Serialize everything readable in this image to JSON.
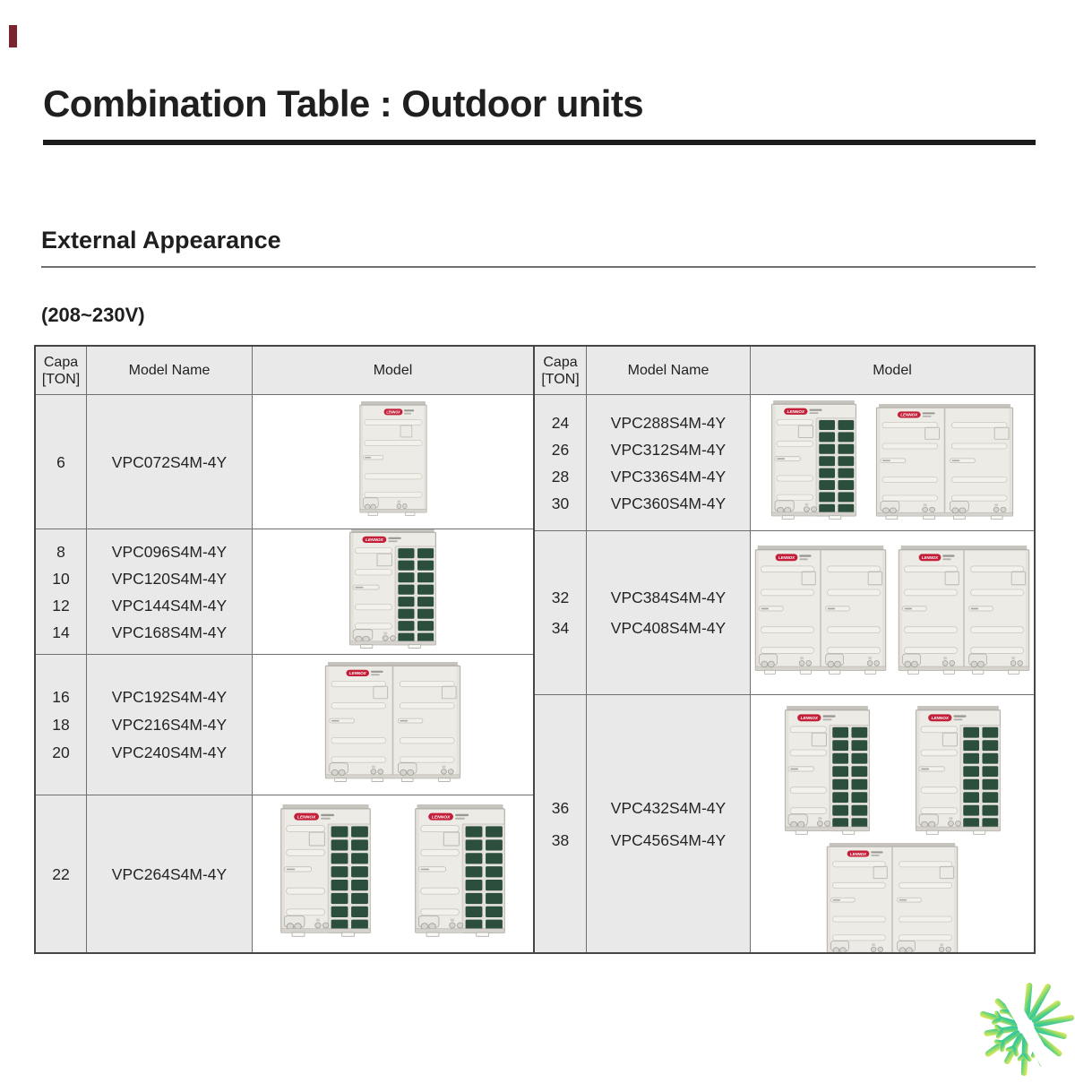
{
  "page": {
    "title": "Combination Table : Outdoor units",
    "section_heading": "External Appearance",
    "voltage_note": "(208~230V)"
  },
  "brand": {
    "unit_logo_text": "LENNOX",
    "unit_logo_color": "#c31f39"
  },
  "colors": {
    "header_bg": "#e9e9ea",
    "outer_border": "#454545",
    "inner_border": "#6e6e6e",
    "grid_panel_green": "#2c4e3c",
    "title_rule": "#1c1c1c",
    "corner_tick": "#7b2430",
    "snowflake_teal": "#25c3a8",
    "snowflake_yellow": "#eded58"
  },
  "table": {
    "headers": {
      "capa_line1": "Capa",
      "capa_line2": "[TON]",
      "model_name": "Model Name",
      "model": "Model"
    },
    "left_rows": [
      {
        "capacities": [
          "6"
        ],
        "model_names": [
          "VPC072S4M-4Y"
        ],
        "unit_rows": [
          [
            "single"
          ]
        ]
      },
      {
        "capacities": [
          "8",
          "10",
          "12",
          "14"
        ],
        "model_names": [
          "VPC096S4M-4Y",
          "VPC120S4M-4Y",
          "VPC144S4M-4Y",
          "VPC168S4M-4Y"
        ],
        "unit_rows": [
          [
            "single_grid"
          ]
        ]
      },
      {
        "capacities": [
          "16",
          "18",
          "20"
        ],
        "model_names": [
          "VPC192S4M-4Y",
          "VPC216S4M-4Y",
          "VPC240S4M-4Y"
        ],
        "unit_rows": [
          [
            "double"
          ]
        ]
      },
      {
        "capacities": [
          "22"
        ],
        "model_names": [
          "VPC264S4M-4Y"
        ],
        "unit_rows": [
          [
            "single_grid",
            "single_grid"
          ]
        ]
      }
    ],
    "right_rows": [
      {
        "capacities": [
          "24",
          "26",
          "28",
          "30"
        ],
        "model_names": [
          "VPC288S4M-4Y",
          "VPC312S4M-4Y",
          "VPC336S4M-4Y",
          "VPC360S4M-4Y"
        ],
        "unit_rows": [
          [
            "single_grid",
            "double"
          ]
        ]
      },
      {
        "capacities": [
          "32",
          "34"
        ],
        "model_names": [
          "VPC384S4M-4Y",
          "VPC408S4M-4Y"
        ],
        "unit_rows": [
          [
            "double",
            "double"
          ]
        ]
      },
      {
        "capacities": [
          "36",
          "38"
        ],
        "model_names": [
          "VPC432S4M-4Y",
          "VPC456S4M-4Y"
        ],
        "unit_rows": [
          [
            "single_grid",
            "single_grid"
          ],
          [
            "double"
          ]
        ]
      }
    ]
  }
}
